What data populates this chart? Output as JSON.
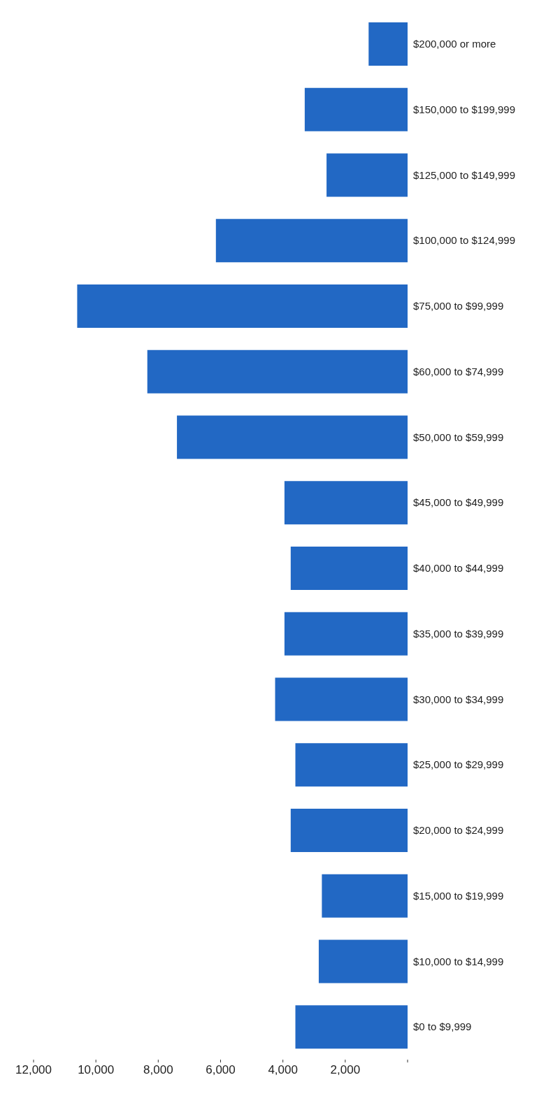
{
  "chart_data": {
    "type": "bar",
    "orientation": "horizontal",
    "categories": [
      "$200,000 or more",
      "$150,000 to $199,999",
      "$125,000 to $149,999",
      "$100,000 to $124,999",
      "$75,000 to $99,999",
      "$60,000 to $74,999",
      "$50,000 to $59,999",
      "$45,000 to $49,999",
      "$40,000 to $44,999",
      "$35,000 to $39,999",
      "$30,000 to $34,999",
      "$25,000 to $29,999",
      "$20,000 to $24,999",
      "$15,000 to $19,999",
      "$10,000 to $14,999",
      "$0 to $9,999"
    ],
    "values": [
      1250,
      3300,
      2600,
      6150,
      10600,
      8350,
      7400,
      3950,
      3750,
      3950,
      4250,
      3600,
      3750,
      2750,
      2850,
      3600
    ],
    "color": "#2268c4",
    "xlim": [
      12000,
      0
    ],
    "xticks": [
      {
        "value": 12000,
        "label": "12,000"
      },
      {
        "value": 10000,
        "label": "10,000"
      },
      {
        "value": 8000,
        "label": "8,000"
      },
      {
        "value": 6000,
        "label": "6,000"
      },
      {
        "value": 4000,
        "label": "4,000"
      },
      {
        "value": 2000,
        "label": "2,000"
      },
      {
        "value": 0,
        "label": null
      }
    ],
    "grid": false,
    "legend": false
  }
}
